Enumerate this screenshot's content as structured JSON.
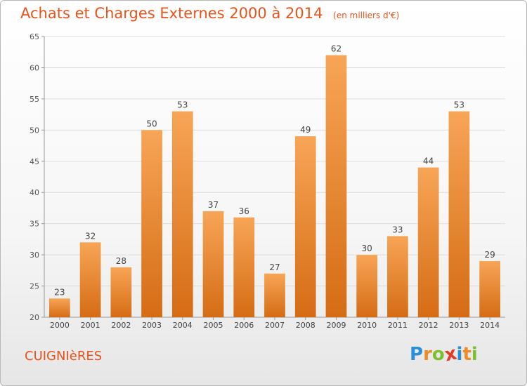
{
  "chart_data": {
    "type": "bar",
    "title": "Achats et Charges Externes 2000 à 2014",
    "subtitle": "(en milliers d'€)",
    "xlabel": "",
    "ylabel": "",
    "categories": [
      "2000",
      "2001",
      "2002",
      "2003",
      "2004",
      "2005",
      "2006",
      "2007",
      "2008",
      "2009",
      "2010",
      "2011",
      "2012",
      "2013",
      "2014"
    ],
    "values": [
      23,
      32,
      28,
      50,
      53,
      37,
      36,
      27,
      49,
      62,
      30,
      33,
      44,
      53,
      29
    ],
    "ylim": [
      20,
      65
    ],
    "yticks": [
      20,
      25,
      30,
      35,
      40,
      45,
      50,
      55,
      60,
      65
    ],
    "grid": true,
    "bar_color_top": "#f7a556",
    "bar_color_bottom": "#d56c14"
  },
  "footer": {
    "place_name": "CUIGNIèRES",
    "logo_letters": [
      {
        "char": "P",
        "color": "#2a8fd6"
      },
      {
        "char": "r",
        "color": "#f08a24"
      },
      {
        "char": "o",
        "color": "#7dbf2e"
      },
      {
        "char": "x",
        "color": "#e23b2a"
      },
      {
        "char": "i",
        "color": "#2a8fd6"
      },
      {
        "char": "t",
        "color": "#f08a24"
      },
      {
        "char": "i",
        "color": "#7dbf2e"
      }
    ]
  },
  "colors": {
    "accent": "#e8531a"
  }
}
